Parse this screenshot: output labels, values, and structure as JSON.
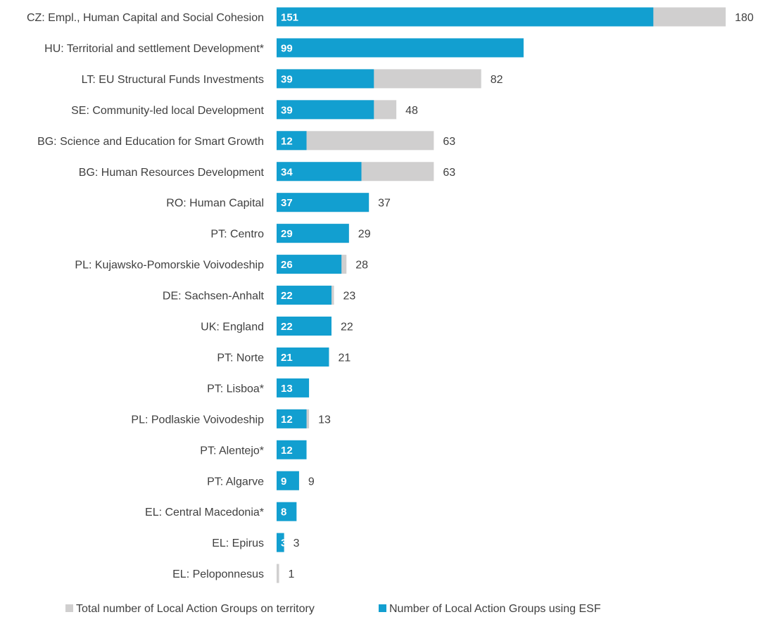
{
  "colors": {
    "esf": "#129fd0",
    "total": "#d0cfcf",
    "text": "#404040"
  },
  "legend": {
    "total_label": "Total number of Local Action Groups on territory",
    "esf_label": "Number of Local Action Groups using ESF"
  },
  "chart_data": {
    "type": "bar",
    "orientation": "horizontal",
    "stacking": "overlaid",
    "grid": false,
    "legend_position": "bottom",
    "categories": [
      "CZ: Empl., Human Capital and Social Cohesion",
      "HU: Territorial and settlement Development*",
      "LT: EU Structural Funds Investments",
      "SE: Community-led local Development",
      "BG: Science and Education for Smart Growth",
      "BG: Human Resources Development",
      "RO: Human Capital",
      "PT: Centro",
      "PL: Kujawsko-Pomorskie Voivodeship",
      "DE: Sachsen-Anhalt",
      "UK: England",
      "PT: Norte",
      "PT: Lisboa*",
      "PL: Podlaskie Voivodeship",
      "PT: Alentejo*",
      "PT: Algarve",
      "EL: Central Macedonia*",
      "EL: Epirus",
      "EL: Peloponnesus"
    ],
    "series": [
      {
        "name": "Total number of Local Action Groups on territory",
        "values": [
          180,
          null,
          82,
          48,
          63,
          63,
          37,
          29,
          28,
          23,
          22,
          21,
          null,
          13,
          null,
          9,
          null,
          3,
          1
        ]
      },
      {
        "name": "Number of Local Action Groups using ESF",
        "values": [
          151,
          99,
          39,
          39,
          12,
          34,
          37,
          29,
          26,
          22,
          22,
          21,
          13,
          12,
          12,
          9,
          8,
          3,
          null
        ]
      }
    ]
  }
}
